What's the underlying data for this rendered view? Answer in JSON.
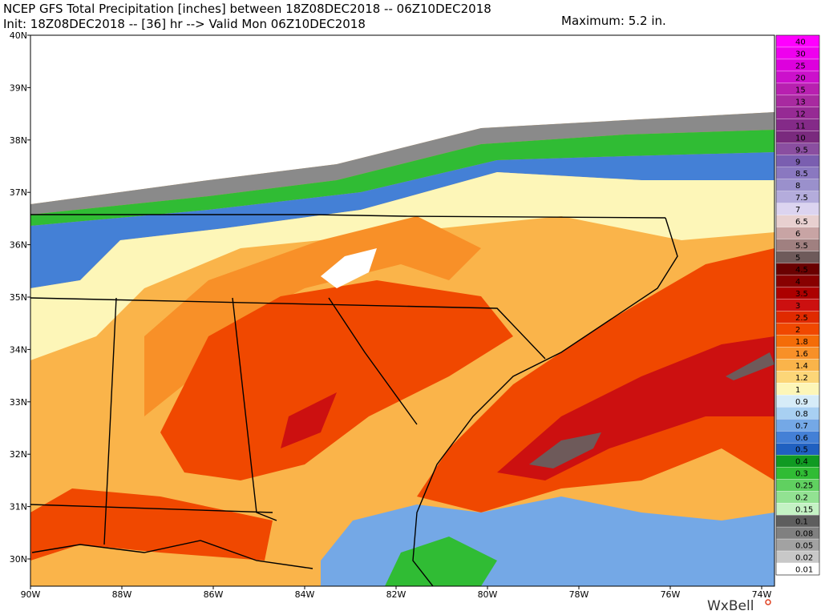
{
  "header": {
    "line1": "NCEP GFS Total Precipitation [inches] between 18Z08DEC2018 -- 06Z10DEC2018",
    "line2": "Init: 18Z08DEC2018 -- [36] hr --> Valid Mon 06Z10DEC2018",
    "maximum": "Maximum: 5.2 in."
  },
  "latitude_labels": [
    "40N",
    "39N",
    "38N",
    "37N",
    "36N",
    "35N",
    "34N",
    "33N",
    "32N",
    "31N",
    "30N"
  ],
  "longitude_labels": [
    "90W",
    "88W",
    "86W",
    "84W",
    "82W",
    "80W",
    "78W",
    "76W",
    "74W"
  ],
  "colorbar": {
    "levels": [
      {
        "label": "40",
        "color": "#ff00ff"
      },
      {
        "label": "30",
        "color": "#ee00ee"
      },
      {
        "label": "25",
        "color": "#dd00dd"
      },
      {
        "label": "20",
        "color": "#cc10cc"
      },
      {
        "label": "15",
        "color": "#b820b0"
      },
      {
        "label": "13",
        "color": "#a82aa0"
      },
      {
        "label": "12",
        "color": "#962a94"
      },
      {
        "label": "11",
        "color": "#842a88"
      },
      {
        "label": "10",
        "color": "#7a2a7e"
      },
      {
        "label": "9.5",
        "color": "#8a4ea0"
      },
      {
        "label": "9",
        "color": "#7a5eb0"
      },
      {
        "label": "8.5",
        "color": "#8a78c0"
      },
      {
        "label": "8",
        "color": "#9a90cc"
      },
      {
        "label": "7.5",
        "color": "#b4acdc"
      },
      {
        "label": "7",
        "color": "#dcd4f0"
      },
      {
        "label": "6.5",
        "color": "#e8d0d0"
      },
      {
        "label": "6",
        "color": "#c8a4a4"
      },
      {
        "label": "5.5",
        "color": "#a08080"
      },
      {
        "label": "5",
        "color": "#6e5a5a"
      },
      {
        "label": "4.5",
        "color": "#6a0000"
      },
      {
        "label": "4",
        "color": "#880000"
      },
      {
        "label": "3.5",
        "color": "#ac0000"
      },
      {
        "label": "3",
        "color": "#cc1010"
      },
      {
        "label": "2.5",
        "color": "#e02a00"
      },
      {
        "label": "2",
        "color": "#f04800"
      },
      {
        "label": "1.8",
        "color": "#f46c08"
      },
      {
        "label": "1.6",
        "color": "#f89028"
      },
      {
        "label": "1.4",
        "color": "#fab44a"
      },
      {
        "label": "1.2",
        "color": "#fcd678"
      },
      {
        "label": "1",
        "color": "#fdf6b8"
      },
      {
        "label": "0.9",
        "color": "#d6ecf8"
      },
      {
        "label": "0.8",
        "color": "#a8d0f2"
      },
      {
        "label": "0.7",
        "color": "#74a8e6"
      },
      {
        "label": "0.6",
        "color": "#4480d6"
      },
      {
        "label": "0.5",
        "color": "#2060c0"
      },
      {
        "label": "0.4",
        "color": "#109a22"
      },
      {
        "label": "0.3",
        "color": "#30bc34"
      },
      {
        "label": "0.25",
        "color": "#60d060"
      },
      {
        "label": "0.2",
        "color": "#92e292"
      },
      {
        "label": "0.15",
        "color": "#c4f2c4"
      },
      {
        "label": "0.1",
        "color": "#5e5e5e"
      },
      {
        "label": "0.08",
        "color": "#808080"
      },
      {
        "label": "0.05",
        "color": "#a2a2a2"
      },
      {
        "label": "0.02",
        "color": "#c8c8c8"
      },
      {
        "label": "0.01",
        "color": "#ffffff"
      }
    ]
  },
  "brand": "WxBell"
}
